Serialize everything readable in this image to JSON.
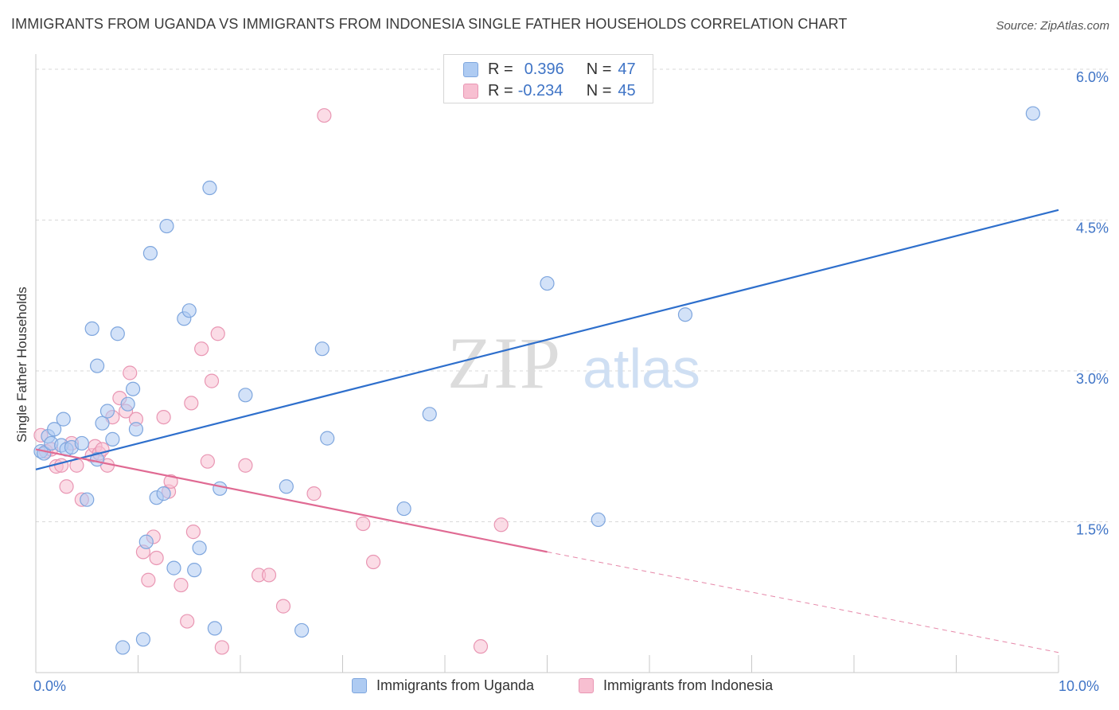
{
  "header": {
    "title": "IMMIGRANTS FROM UGANDA VS IMMIGRANTS FROM INDONESIA SINGLE FATHER HOUSEHOLDS CORRELATION CHART",
    "source": "Source: ZipAtlas.com"
  },
  "watermark": {
    "zip": "ZIP",
    "atlas": "atlas"
  },
  "legend": {
    "r_label": "R =",
    "n_label": "N =",
    "uganda": {
      "r": "0.396",
      "n": "47"
    },
    "indonesia": {
      "r": "-0.234",
      "n": "45"
    }
  },
  "colors": {
    "uganda_fill": "#aecbf2",
    "uganda_stroke": "#7ea6de",
    "uganda_line": "#2e6fcc",
    "indonesia_fill": "#f7bfd1",
    "indonesia_stroke": "#e996b3",
    "indonesia_line": "#e06a93",
    "grid": "#d9d9d9",
    "tick_label": "#3f74c6"
  },
  "chart_data": {
    "type": "scatter",
    "title": "IMMIGRANTS FROM UGANDA VS IMMIGRANTS FROM INDONESIA SINGLE FATHER HOUSEHOLDS CORRELATION CHART",
    "xlabel": "",
    "ylabel": "Single Father Households",
    "xlim": [
      0,
      10
    ],
    "ylim": [
      0,
      6.15
    ],
    "x_tick_labels": [
      "0.0%",
      "10.0%"
    ],
    "y_ticks": [
      1.5,
      3.0,
      4.5,
      6.0
    ],
    "y_tick_labels": [
      "1.5%",
      "3.0%",
      "4.5%",
      "6.0%"
    ],
    "grid": "horizontal dashed",
    "legend_position": "top-center",
    "series": [
      {
        "name": "Immigrants from Uganda",
        "points": [
          [
            0.05,
            2.2
          ],
          [
            0.08,
            2.18
          ],
          [
            0.12,
            2.35
          ],
          [
            0.15,
            2.28
          ],
          [
            0.18,
            2.42
          ],
          [
            0.25,
            2.26
          ],
          [
            0.27,
            2.52
          ],
          [
            0.3,
            2.22
          ],
          [
            0.35,
            2.24
          ],
          [
            0.45,
            2.28
          ],
          [
            0.5,
            1.72
          ],
          [
            0.55,
            3.42
          ],
          [
            0.6,
            2.12
          ],
          [
            0.6,
            3.05
          ],
          [
            0.65,
            2.48
          ],
          [
            0.7,
            2.6
          ],
          [
            0.75,
            2.32
          ],
          [
            0.8,
            3.37
          ],
          [
            0.85,
            0.25
          ],
          [
            0.9,
            2.67
          ],
          [
            0.95,
            2.82
          ],
          [
            0.98,
            2.42
          ],
          [
            1.05,
            0.33
          ],
          [
            1.08,
            1.3
          ],
          [
            1.12,
            4.17
          ],
          [
            1.18,
            1.74
          ],
          [
            1.25,
            1.78
          ],
          [
            1.28,
            4.44
          ],
          [
            1.35,
            1.04
          ],
          [
            1.45,
            3.52
          ],
          [
            1.5,
            3.6
          ],
          [
            1.55,
            1.02
          ],
          [
            1.6,
            1.24
          ],
          [
            1.7,
            4.82
          ],
          [
            1.75,
            0.44
          ],
          [
            1.8,
            1.83
          ],
          [
            2.05,
            2.76
          ],
          [
            2.45,
            1.85
          ],
          [
            2.6,
            0.42
          ],
          [
            2.8,
            3.22
          ],
          [
            2.85,
            2.33
          ],
          [
            3.6,
            1.63
          ],
          [
            3.85,
            2.57
          ],
          [
            5.0,
            3.87
          ],
          [
            5.5,
            1.52
          ],
          [
            6.35,
            3.56
          ],
          [
            9.75,
            5.56
          ]
        ],
        "trendline": {
          "x": [
            0,
            10
          ],
          "y": [
            2.02,
            4.6
          ]
        }
      },
      {
        "name": "Immigrants from Indonesia",
        "points": [
          [
            0.05,
            2.36
          ],
          [
            0.1,
            2.2
          ],
          [
            0.15,
            2.22
          ],
          [
            0.2,
            2.05
          ],
          [
            0.25,
            2.06
          ],
          [
            0.3,
            1.85
          ],
          [
            0.35,
            2.28
          ],
          [
            0.4,
            2.06
          ],
          [
            0.45,
            1.72
          ],
          [
            0.55,
            2.16
          ],
          [
            0.58,
            2.25
          ],
          [
            0.62,
            2.18
          ],
          [
            0.65,
            2.22
          ],
          [
            0.7,
            2.06
          ],
          [
            0.75,
            2.54
          ],
          [
            0.82,
            2.73
          ],
          [
            0.88,
            2.6
          ],
          [
            0.92,
            2.98
          ],
          [
            0.98,
            2.52
          ],
          [
            1.05,
            1.2
          ],
          [
            1.1,
            0.92
          ],
          [
            1.15,
            1.35
          ],
          [
            1.18,
            1.14
          ],
          [
            1.25,
            2.54
          ],
          [
            1.3,
            1.8
          ],
          [
            1.32,
            1.9
          ],
          [
            1.42,
            0.87
          ],
          [
            1.48,
            0.51
          ],
          [
            1.52,
            2.68
          ],
          [
            1.54,
            1.4
          ],
          [
            1.62,
            3.22
          ],
          [
            1.68,
            2.1
          ],
          [
            1.72,
            2.9
          ],
          [
            1.78,
            3.37
          ],
          [
            1.82,
            0.25
          ],
          [
            2.05,
            2.06
          ],
          [
            2.18,
            0.97
          ],
          [
            2.28,
            0.97
          ],
          [
            2.42,
            0.66
          ],
          [
            2.72,
            1.78
          ],
          [
            2.82,
            5.54
          ],
          [
            3.2,
            1.48
          ],
          [
            3.3,
            1.1
          ],
          [
            4.35,
            0.26
          ],
          [
            4.55,
            1.47
          ]
        ],
        "trendline": {
          "x": [
            0,
            5
          ],
          "y": [
            2.22,
            1.2
          ]
        },
        "trendline_extension": {
          "x": [
            5,
            10
          ],
          "y": [
            1.2,
            0.2
          ]
        }
      }
    ]
  },
  "bottom_legend": {
    "uganda": "Immigrants from Uganda",
    "indonesia": "Immigrants from Indonesia"
  }
}
